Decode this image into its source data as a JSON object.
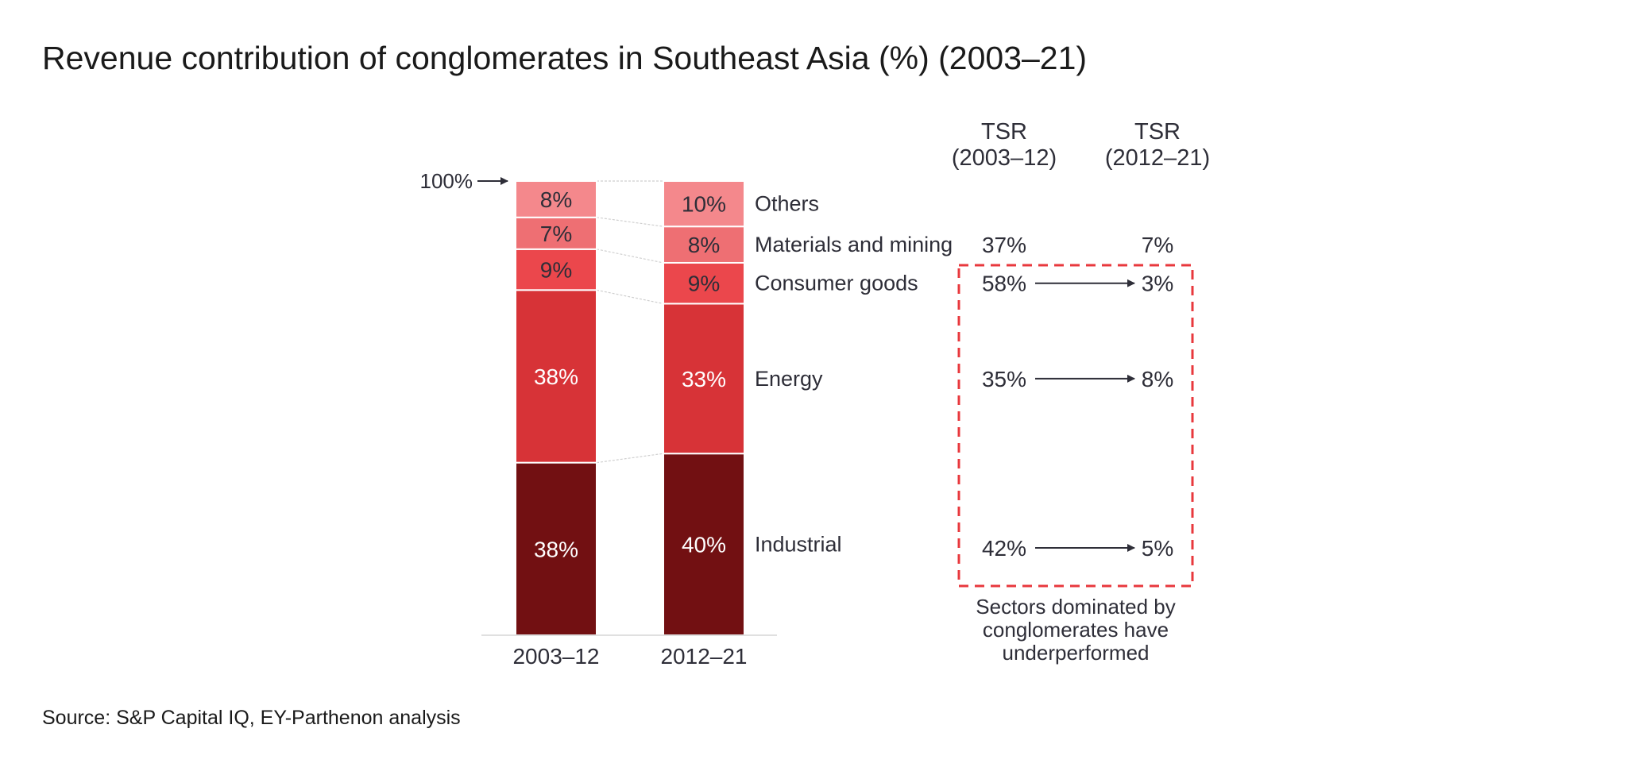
{
  "title": "Revenue contribution of conglomerates in Southeast Asia (%) (2003–21)",
  "source": "Source: S&P Capital IQ, EY-Parthenon analysis",
  "colors": {
    "Others": "#f4888c",
    "Materials and mining": "#ee6f73",
    "Consumer goods": "#eb474c",
    "Energy": "#d73337",
    "Industrial": "#721012",
    "box": "#e8383d",
    "text": "#2e2e38"
  },
  "chart_data": {
    "type": "bar",
    "stacked": true,
    "ylim": [
      0,
      100
    ],
    "y_marker": "100%",
    "categories": [
      "2003–12",
      "2012–21"
    ],
    "series": [
      {
        "name": "Industrial",
        "values": [
          38,
          40
        ],
        "labels": [
          "38%",
          "40%"
        ]
      },
      {
        "name": "Energy",
        "values": [
          38,
          33
        ],
        "labels": [
          "38%",
          "33%"
        ]
      },
      {
        "name": "Consumer goods",
        "values": [
          9,
          9
        ],
        "labels": [
          "9%",
          "9%"
        ]
      },
      {
        "name": "Materials and mining",
        "values": [
          7,
          8
        ],
        "labels": [
          "7%",
          "8%"
        ]
      },
      {
        "name": "Others",
        "values": [
          8,
          10
        ],
        "labels": [
          "8%",
          "10%"
        ]
      }
    ],
    "tsr": {
      "headers": [
        "TSR\n(2003–12)",
        "TSR\n(2012–21)"
      ],
      "rows": [
        {
          "sector": "Materials and mining",
          "tsr_2003_12": "37%",
          "tsr_2012_21": "7%",
          "arrow": false
        },
        {
          "sector": "Consumer goods",
          "tsr_2003_12": "58%",
          "tsr_2012_21": "3%",
          "arrow": true
        },
        {
          "sector": "Energy",
          "tsr_2003_12": "35%",
          "tsr_2012_21": "8%",
          "arrow": true
        },
        {
          "sector": "Industrial",
          "tsr_2003_12": "42%",
          "tsr_2012_21": "5%",
          "arrow": true
        }
      ]
    },
    "annotation": "Sectors dominated by conglomerates have underperformed"
  }
}
